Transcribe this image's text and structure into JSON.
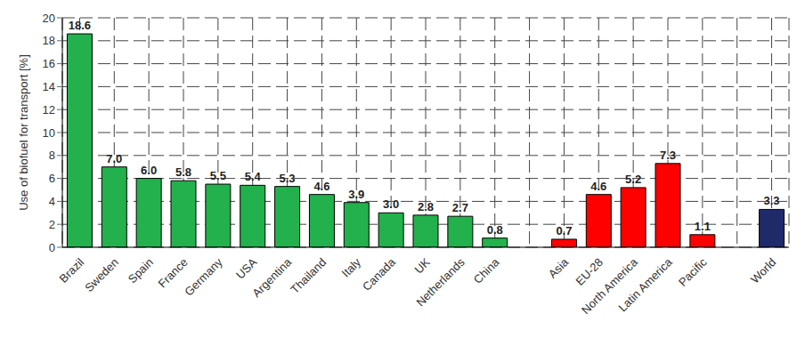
{
  "chart_data": {
    "type": "bar",
    "y_label": "Use of biofuel for transport [%]",
    "categories": [
      "Brazil",
      "Sweden",
      "Spain",
      "France",
      "Germany",
      "USA",
      "Argentina",
      "Thailand",
      "Italy",
      "Canada",
      "UK",
      "Netherlands",
      "China",
      null,
      "Asia",
      "EU-28",
      "North America",
      "Latin America",
      "Pacific",
      null,
      "World"
    ],
    "values": [
      18.6,
      7.0,
      6.0,
      5.8,
      5.5,
      5.4,
      5.3,
      4.6,
      3.9,
      3.0,
      2.8,
      2.7,
      0.8,
      null,
      0.7,
      4.6,
      5.2,
      7.3,
      1.1,
      null,
      3.3
    ],
    "value_labels": [
      "18.6",
      "7.0",
      "6.0",
      "5.8",
      "5.5",
      "5.4",
      "5.3",
      "4.6",
      "3.9",
      "3.0",
      "2.8",
      "2.7",
      "0.8",
      null,
      "0.7",
      "4.6",
      "5.2",
      "7.3",
      "1.1",
      null,
      "3.3"
    ],
    "colors": [
      "#22b14c",
      "#22b14c",
      "#22b14c",
      "#22b14c",
      "#22b14c",
      "#22b14c",
      "#22b14c",
      "#22b14c",
      "#22b14c",
      "#22b14c",
      "#22b14c",
      "#22b14c",
      "#22b14c",
      null,
      "#ff0000",
      "#ff0000",
      "#ff0000",
      "#ff0000",
      "#ff0000",
      null,
      "#1f2a6b"
    ],
    "ylim": [
      0,
      20
    ],
    "yticks": [
      0,
      2,
      4,
      6,
      8,
      10,
      12,
      14,
      16,
      18,
      20
    ],
    "grid": true,
    "data_labels": true
  }
}
